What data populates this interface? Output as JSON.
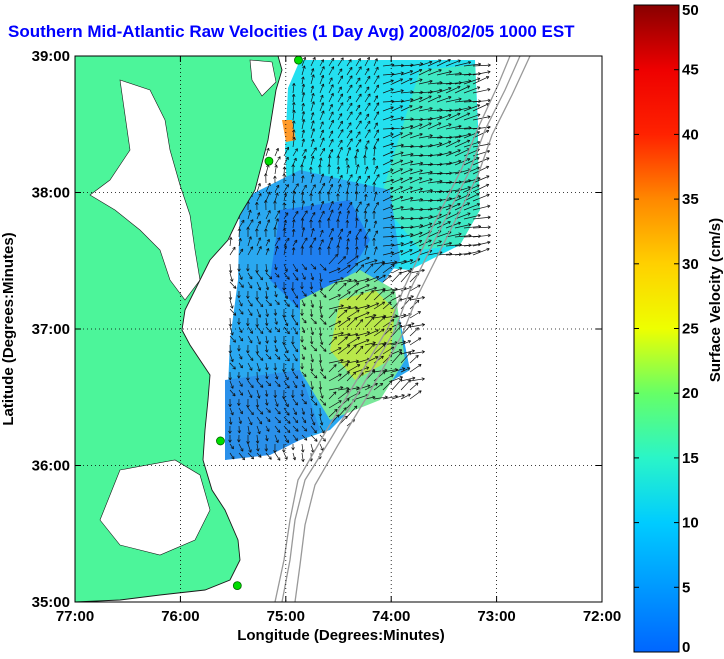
{
  "chart_data": {
    "type": "heatmap",
    "title": "Southern Mid-Atlantic Raw Velocities (1 Day Avg) 2008/02/05 1000 EST",
    "xlabel": "Longitude (Degrees:Minutes)",
    "ylabel": "Latitude (Degrees:Minutes)",
    "x_ticks": [
      "77:00",
      "76:00",
      "75:00",
      "74:00",
      "73:00",
      "72:00"
    ],
    "y_ticks": [
      "39:00",
      "38:00",
      "37:00",
      "36:00",
      "35:00"
    ],
    "xlim": [
      -77,
      -72
    ],
    "ylim": [
      35,
      39
    ],
    "grid": true,
    "colorbar": {
      "label": "Surface Velocity (cm/s)",
      "range": [
        0,
        50
      ],
      "ticks": [
        0,
        5,
        10,
        15,
        20,
        25,
        30,
        35,
        40,
        45,
        50
      ],
      "colormap": "jet"
    },
    "velocity_field": [
      {
        "lon": -74.2,
        "lat": 38.4,
        "speed": 15
      },
      {
        "lon": -73.5,
        "lat": 38.4,
        "speed": 20
      },
      {
        "lon": -74.7,
        "lat": 37.5,
        "speed": 6
      },
      {
        "lon": -73.9,
        "lat": 37.0,
        "speed": 26
      },
      {
        "lon": -75.0,
        "lat": 36.5,
        "speed": 6
      },
      {
        "lon": -74.3,
        "lat": 36.6,
        "speed": 14
      }
    ],
    "stations": [
      {
        "lon": -74.88,
        "lat": 38.97
      },
      {
        "lon": -75.16,
        "lat": 38.23
      },
      {
        "lon": -75.62,
        "lat": 36.18
      },
      {
        "lon": -75.46,
        "lat": 35.12
      }
    ]
  },
  "colors": {
    "land": "#4cf59a",
    "title": "#0000ff",
    "station": "#00dd00",
    "bathymetry": "#999999"
  }
}
